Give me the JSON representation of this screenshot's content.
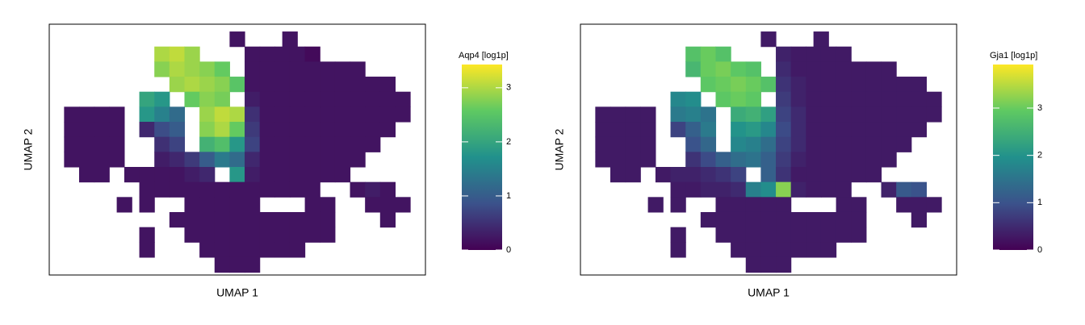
{
  "chart_data": [
    {
      "type": "hexbin",
      "colorbar_title": "Aqp4 [log1p]",
      "xlabel": "UMAP 1",
      "ylabel": "UMAP 2",
      "xlim": [
        0,
        100
      ],
      "ylim": [
        0,
        100
      ],
      "clim": [
        0,
        3.43
      ],
      "cticks": [
        0,
        1,
        2,
        3
      ],
      "x": [
        50,
        64,
        30,
        34,
        38,
        54,
        58,
        62,
        66,
        70,
        30,
        34,
        38,
        42,
        46,
        54,
        58,
        62,
        66,
        70,
        74,
        78,
        82,
        34,
        38,
        42,
        46,
        50,
        54,
        58,
        62,
        66,
        70,
        74,
        78,
        82,
        86,
        90,
        26,
        30,
        38,
        42,
        46,
        54,
        58,
        62,
        66,
        70,
        74,
        78,
        82,
        86,
        90,
        94,
        6,
        10,
        14,
        18,
        26,
        30,
        34,
        42,
        46,
        50,
        54,
        58,
        62,
        66,
        70,
        74,
        78,
        82,
        86,
        90,
        94,
        6,
        10,
        14,
        18,
        26,
        30,
        34,
        42,
        46,
        50,
        54,
        58,
        62,
        66,
        70,
        74,
        78,
        82,
        86,
        90,
        6,
        10,
        14,
        18,
        30,
        34,
        42,
        46,
        50,
        54,
        58,
        62,
        66,
        70,
        74,
        78,
        82,
        86,
        6,
        10,
        14,
        18,
        30,
        34,
        38,
        42,
        46,
        50,
        54,
        58,
        62,
        66,
        70,
        74,
        78,
        82,
        10,
        14,
        22,
        26,
        30,
        34,
        38,
        42,
        50,
        54,
        58,
        62,
        66,
        70,
        74,
        78,
        26,
        30,
        34,
        38,
        42,
        46,
        50,
        54,
        58,
        62,
        66,
        70,
        82,
        86,
        90,
        20,
        26,
        38,
        42,
        46,
        50,
        54,
        70,
        74,
        86,
        90,
        94,
        34,
        38,
        42,
        46,
        50,
        54,
        58,
        62,
        66,
        70,
        74,
        90,
        26,
        38,
        42,
        46,
        50,
        54,
        58,
        62,
        66,
        70,
        74,
        26,
        42,
        46,
        50,
        54,
        58,
        62,
        66,
        46,
        50,
        54
      ],
      "y": [
        94,
        94,
        88,
        88,
        88,
        88,
        88,
        88,
        88,
        88,
        82,
        82,
        82,
        82,
        82,
        82,
        82,
        82,
        82,
        82,
        82,
        82,
        82,
        76,
        76,
        76,
        76,
        76,
        76,
        76,
        76,
        76,
        76,
        76,
        76,
        76,
        76,
        76,
        70,
        70,
        70,
        70,
        70,
        70,
        70,
        70,
        70,
        70,
        70,
        70,
        70,
        70,
        70,
        70,
        64,
        64,
        64,
        64,
        64,
        64,
        64,
        64,
        64,
        64,
        64,
        64,
        64,
        64,
        64,
        64,
        64,
        64,
        64,
        64,
        64,
        58,
        58,
        58,
        58,
        58,
        58,
        58,
        58,
        58,
        58,
        58,
        58,
        58,
        58,
        58,
        58,
        58,
        58,
        58,
        58,
        52,
        52,
        52,
        52,
        52,
        52,
        52,
        52,
        52,
        52,
        52,
        52,
        52,
        52,
        52,
        52,
        52,
        52,
        46,
        46,
        46,
        46,
        46,
        46,
        46,
        46,
        46,
        46,
        46,
        46,
        46,
        46,
        46,
        46,
        46,
        46,
        40,
        40,
        40,
        40,
        40,
        40,
        40,
        40,
        40,
        40,
        40,
        40,
        40,
        40,
        40,
        40,
        34,
        34,
        34,
        34,
        34,
        34,
        34,
        34,
        34,
        34,
        34,
        34,
        34,
        34,
        34,
        28,
        28,
        28,
        28,
        28,
        28,
        28,
        28,
        28,
        28,
        28,
        28,
        22,
        22,
        22,
        22,
        22,
        22,
        22,
        22,
        22,
        22,
        22,
        22,
        16,
        16,
        16,
        16,
        16,
        16,
        16,
        16,
        16,
        16,
        16,
        10,
        10,
        10,
        10,
        10,
        10,
        10,
        10,
        4,
        4,
        4
      ],
      "values": [
        0.2,
        0.2,
        3.0,
        3.1,
        2.9,
        0.2,
        0.2,
        0.2,
        0.2,
        0.1,
        2.8,
        3.0,
        2.9,
        2.8,
        2.6,
        0.2,
        0.2,
        0.2,
        0.2,
        0.2,
        0.2,
        0.2,
        0.2,
        2.9,
        3.0,
        2.9,
        2.8,
        2.5,
        0.2,
        0.2,
        0.2,
        0.2,
        0.2,
        0.2,
        0.2,
        0.2,
        0.2,
        0.2,
        2.0,
        1.8,
        2.6,
        2.8,
        2.7,
        0.3,
        0.2,
        0.2,
        0.2,
        0.2,
        0.2,
        0.2,
        0.2,
        0.2,
        0.2,
        0.2,
        0.2,
        0.2,
        0.2,
        0.2,
        1.8,
        1.5,
        1.2,
        2.9,
        3.1,
        3.0,
        0.5,
        0.2,
        0.2,
        0.2,
        0.2,
        0.2,
        0.2,
        0.2,
        0.2,
        0.2,
        0.2,
        0.2,
        0.2,
        0.2,
        0.2,
        0.4,
        0.8,
        1.0,
        2.8,
        3.0,
        2.6,
        0.6,
        0.2,
        0.2,
        0.2,
        0.2,
        0.2,
        0.2,
        0.2,
        0.2,
        0.2,
        0.2,
        0.2,
        0.2,
        0.2,
        0.5,
        0.7,
        2.2,
        2.4,
        1.8,
        0.7,
        0.2,
        0.2,
        0.2,
        0.2,
        0.2,
        0.2,
        0.2,
        0.2,
        0.2,
        0.2,
        0.2,
        0.2,
        0.3,
        0.4,
        0.6,
        1.0,
        1.4,
        1.2,
        0.4,
        0.2,
        0.2,
        0.2,
        0.2,
        0.2,
        0.2,
        0.2,
        0.2,
        0.2,
        0.2,
        0.2,
        0.2,
        0.2,
        0.3,
        0.4,
        1.8,
        0.3,
        0.2,
        0.2,
        0.2,
        0.2,
        0.2,
        0.2,
        0.2,
        0.2,
        0.2,
        0.2,
        0.2,
        0.2,
        0.2,
        0.2,
        0.2,
        0.2,
        0.2,
        0.2,
        0.2,
        0.3,
        0.2,
        0.2,
        0.2,
        0.2,
        0.2,
        0.2,
        0.2,
        0.2,
        0.2,
        0.2,
        0.2,
        0.2,
        0.2,
        0.2,
        0.2,
        0.2,
        0.2,
        0.2,
        0.2,
        0.2,
        0.2,
        0.2,
        0.2,
        0.2,
        0.2,
        0.2,
        0.2,
        0.2,
        0.2,
        0.2,
        0.2,
        0.2,
        0.2,
        0.2,
        0.2,
        0.2,
        0.2,
        0.2,
        0.2,
        0.2,
        0.2,
        0.2,
        0.2,
        0.2,
        0.2,
        0.2,
        0.2
      ]
    },
    {
      "type": "hexbin",
      "colorbar_title": "Gja1 [log1p]",
      "xlabel": "UMAP 1",
      "ylabel": "UMAP 2",
      "xlim": [
        0,
        100
      ],
      "ylim": [
        0,
        100
      ],
      "clim": [
        0,
        3.92
      ],
      "cticks": [
        0,
        1,
        2,
        3
      ],
      "x": [
        50,
        64,
        30,
        34,
        38,
        54,
        58,
        62,
        66,
        70,
        30,
        34,
        38,
        42,
        46,
        54,
        58,
        62,
        66,
        70,
        74,
        78,
        82,
        34,
        38,
        42,
        46,
        50,
        54,
        58,
        62,
        66,
        70,
        74,
        78,
        82,
        86,
        90,
        26,
        30,
        38,
        42,
        46,
        54,
        58,
        62,
        66,
        70,
        74,
        78,
        82,
        86,
        90,
        94,
        6,
        10,
        14,
        18,
        26,
        30,
        34,
        42,
        46,
        50,
        54,
        58,
        62,
        66,
        70,
        74,
        78,
        82,
        86,
        90,
        94,
        6,
        10,
        14,
        18,
        26,
        30,
        34,
        42,
        46,
        50,
        54,
        58,
        62,
        66,
        70,
        74,
        78,
        82,
        86,
        90,
        6,
        10,
        14,
        18,
        30,
        34,
        42,
        46,
        50,
        54,
        58,
        62,
        66,
        70,
        74,
        78,
        82,
        86,
        6,
        10,
        14,
        18,
        30,
        34,
        38,
        42,
        46,
        50,
        54,
        58,
        62,
        66,
        70,
        74,
        78,
        82,
        10,
        14,
        22,
        26,
        30,
        34,
        38,
        42,
        50,
        54,
        58,
        62,
        66,
        70,
        74,
        78,
        26,
        30,
        34,
        38,
        42,
        46,
        50,
        54,
        58,
        62,
        66,
        70,
        82,
        86,
        90,
        20,
        26,
        38,
        42,
        46,
        50,
        54,
        70,
        74,
        86,
        90,
        94,
        34,
        38,
        42,
        46,
        50,
        54,
        58,
        62,
        66,
        70,
        74,
        90,
        26,
        38,
        42,
        46,
        50,
        54,
        58,
        62,
        66,
        70,
        74,
        26,
        42,
        46,
        50,
        54,
        58,
        62,
        66,
        46,
        50,
        54
      ],
      "y": [
        94,
        94,
        88,
        88,
        88,
        88,
        88,
        88,
        88,
        88,
        82,
        82,
        82,
        82,
        82,
        82,
        82,
        82,
        82,
        82,
        82,
        82,
        82,
        76,
        76,
        76,
        76,
        76,
        76,
        76,
        76,
        76,
        76,
        76,
        76,
        76,
        76,
        76,
        70,
        70,
        70,
        70,
        70,
        70,
        70,
        70,
        70,
        70,
        70,
        70,
        70,
        70,
        70,
        70,
        64,
        64,
        64,
        64,
        64,
        64,
        64,
        64,
        64,
        64,
        64,
        64,
        64,
        64,
        64,
        64,
        64,
        64,
        64,
        64,
        64,
        58,
        58,
        58,
        58,
        58,
        58,
        58,
        58,
        58,
        58,
        58,
        58,
        58,
        58,
        58,
        58,
        58,
        58,
        58,
        58,
        52,
        52,
        52,
        52,
        52,
        52,
        52,
        52,
        52,
        52,
        52,
        52,
        52,
        52,
        52,
        52,
        52,
        52,
        46,
        46,
        46,
        46,
        46,
        46,
        46,
        46,
        46,
        46,
        46,
        46,
        46,
        46,
        46,
        46,
        46,
        46,
        40,
        40,
        40,
        40,
        40,
        40,
        40,
        40,
        40,
        40,
        40,
        40,
        40,
        40,
        40,
        40,
        34,
        34,
        34,
        34,
        34,
        34,
        34,
        34,
        34,
        34,
        34,
        34,
        34,
        34,
        34,
        28,
        28,
        28,
        28,
        28,
        28,
        28,
        28,
        28,
        28,
        28,
        28,
        22,
        22,
        22,
        22,
        22,
        22,
        22,
        22,
        22,
        22,
        22,
        22,
        16,
        16,
        16,
        16,
        16,
        16,
        16,
        16,
        16,
        16,
        16,
        10,
        10,
        10,
        10,
        10,
        10,
        10,
        10,
        4,
        4,
        4
      ],
      "values": [
        0.3,
        0.3,
        2.8,
        3.0,
        2.8,
        0.4,
        0.3,
        0.3,
        0.3,
        0.3,
        2.6,
        3.0,
        3.1,
        2.9,
        2.8,
        0.5,
        0.3,
        0.3,
        0.3,
        0.3,
        0.3,
        0.3,
        0.3,
        2.9,
        3.0,
        3.1,
        3.0,
        2.8,
        0.6,
        0.4,
        0.3,
        0.3,
        0.3,
        0.3,
        0.3,
        0.3,
        0.3,
        0.3,
        1.8,
        1.9,
        2.9,
        3.0,
        2.9,
        0.7,
        0.4,
        0.3,
        0.3,
        0.3,
        0.3,
        0.3,
        0.3,
        0.3,
        0.3,
        0.3,
        0.3,
        0.3,
        0.3,
        0.3,
        1.6,
        1.7,
        1.5,
        2.4,
        2.5,
        2.2,
        0.8,
        0.5,
        0.3,
        0.3,
        0.3,
        0.3,
        0.3,
        0.3,
        0.3,
        0.3,
        0.3,
        0.3,
        0.3,
        0.3,
        0.3,
        0.8,
        1.2,
        1.6,
        2.0,
        2.1,
        1.8,
        0.9,
        0.5,
        0.3,
        0.3,
        0.3,
        0.3,
        0.3,
        0.3,
        0.3,
        0.3,
        0.3,
        0.3,
        0.3,
        0.3,
        1.0,
        1.3,
        1.8,
        1.7,
        1.4,
        0.8,
        0.5,
        0.3,
        0.3,
        0.3,
        0.3,
        0.3,
        0.3,
        0.3,
        0.3,
        0.3,
        0.3,
        0.3,
        0.6,
        0.9,
        1.2,
        1.4,
        1.5,
        1.2,
        0.7,
        0.4,
        0.3,
        0.3,
        0.3,
        0.3,
        0.3,
        0.3,
        0.3,
        0.3,
        0.3,
        0.4,
        0.4,
        0.5,
        0.6,
        0.8,
        1.2,
        0.6,
        0.3,
        0.3,
        0.3,
        0.3,
        0.3,
        0.3,
        0.3,
        0.3,
        0.4,
        0.4,
        0.5,
        1.7,
        1.9,
        3.2,
        0.4,
        0.3,
        0.3,
        0.3,
        0.4,
        1.1,
        1.0,
        0.3,
        0.3,
        0.3,
        0.3,
        0.3,
        0.3,
        0.3,
        0.3,
        0.3,
        0.3,
        0.3,
        0.3,
        0.3,
        0.3,
        0.3,
        0.3,
        0.3,
        0.3,
        0.3,
        0.3,
        0.3,
        0.3,
        0.3,
        0.3,
        0.3,
        0.3,
        0.3,
        0.3,
        0.3,
        0.3,
        0.3,
        0.3,
        0.3,
        0.3,
        0.3,
        0.3,
        0.3,
        0.3,
        0.3,
        0.3,
        0.3,
        0.3,
        0.3,
        0.3,
        0.3,
        0.3
      ]
    }
  ]
}
